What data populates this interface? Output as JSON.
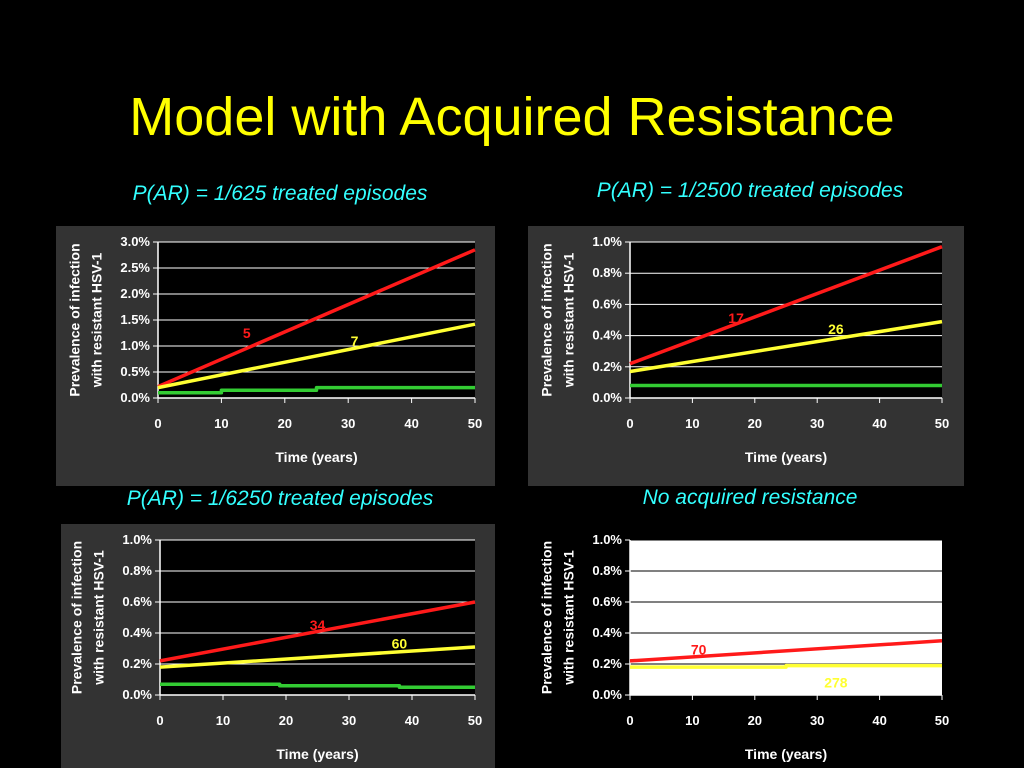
{
  "slide": {
    "title": "Model with Acquired Resistance"
  },
  "colors": {
    "background": "#000000",
    "panel": "#333333",
    "title": "#ffff00",
    "subtitle": "#33ffff",
    "red": "#ff1a1a",
    "yellow": "#ffff33",
    "green": "#33cc33"
  },
  "chart_data": [
    {
      "type": "line",
      "title": "P(AR) = 1/625 treated episodes",
      "xlabel": "Time (years)",
      "ylabel": [
        "Prevalence of infection",
        "with resistant HSV-1"
      ],
      "xlim": [
        0,
        50
      ],
      "ylim": [
        0,
        3.0
      ],
      "xticks": [
        "0",
        "10",
        "20",
        "30",
        "40",
        "50"
      ],
      "yticks": [
        "0.0%",
        "0.5%",
        "1.0%",
        "1.5%",
        "2.0%",
        "2.5%",
        "3.0%"
      ],
      "grid": true,
      "plot_bg": "#000000",
      "series": [
        {
          "color": "#ff1a1a",
          "x": [
            0,
            50
          ],
          "y": [
            0.22,
            2.85
          ],
          "label": "5",
          "label_at": [
            14,
            1.15
          ]
        },
        {
          "color": "#ffff33",
          "x": [
            0,
            50
          ],
          "y": [
            0.2,
            1.42
          ],
          "label": "7",
          "label_at": [
            31,
            1.0
          ]
        },
        {
          "color": "#33cc33",
          "x": [
            0,
            10,
            10,
            25,
            25,
            50
          ],
          "y": [
            0.1,
            0.1,
            0.15,
            0.15,
            0.2,
            0.2
          ],
          "label": "",
          "label_at": null
        }
      ]
    },
    {
      "type": "line",
      "title": "P(AR) = 1/2500 treated episodes",
      "xlabel": "Time (years)",
      "ylabel": [
        "Prevalence of infection",
        "with resistant HSV-1"
      ],
      "xlim": [
        0,
        50
      ],
      "ylim": [
        0,
        1.0
      ],
      "xticks": [
        "0",
        "10",
        "20",
        "30",
        "40",
        "50"
      ],
      "yticks": [
        "0.0%",
        "0.2%",
        "0.4%",
        "0.6%",
        "0.8%",
        "1.0%"
      ],
      "grid": true,
      "plot_bg": "#000000",
      "series": [
        {
          "color": "#ff1a1a",
          "x": [
            0,
            50
          ],
          "y": [
            0.22,
            0.97
          ],
          "label": "17",
          "label_at": [
            17,
            0.48
          ]
        },
        {
          "color": "#ffff33",
          "x": [
            0,
            50
          ],
          "y": [
            0.17,
            0.49
          ],
          "label": "26",
          "label_at": [
            33,
            0.41
          ]
        },
        {
          "color": "#33cc33",
          "x": [
            0,
            50
          ],
          "y": [
            0.08,
            0.08
          ],
          "label": "",
          "label_at": null
        }
      ]
    },
    {
      "type": "line",
      "title": "P(AR) = 1/6250 treated episodes",
      "xlabel": "Time (years)",
      "ylabel": [
        "Prevalence of infection",
        "with resistant HSV-1"
      ],
      "xlim": [
        0,
        50
      ],
      "ylim": [
        0,
        1.0
      ],
      "xticks": [
        "0",
        "10",
        "20",
        "30",
        "40",
        "50"
      ],
      "yticks": [
        "0.0%",
        "0.2%",
        "0.4%",
        "0.6%",
        "0.8%",
        "1.0%"
      ],
      "grid": true,
      "plot_bg": "#000000",
      "series": [
        {
          "color": "#ff1a1a",
          "x": [
            0,
            50
          ],
          "y": [
            0.22,
            0.6
          ],
          "label": "34",
          "label_at": [
            25,
            0.42
          ]
        },
        {
          "color": "#ffff33",
          "x": [
            0,
            50
          ],
          "y": [
            0.18,
            0.31
          ],
          "label": "60",
          "label_at": [
            38,
            0.3
          ]
        },
        {
          "color": "#33cc33",
          "x": [
            0,
            19,
            19,
            38,
            38,
            50
          ],
          "y": [
            0.07,
            0.07,
            0.06,
            0.06,
            0.05,
            0.05
          ],
          "label": "",
          "label_at": null
        }
      ]
    },
    {
      "type": "line",
      "title": "No acquired resistance",
      "xlabel": "Time (years)",
      "ylabel": [
        "Prevalence of infection",
        "with resistant HSV-1"
      ],
      "xlim": [
        0,
        50
      ],
      "ylim": [
        0,
        1.0
      ],
      "xticks": [
        "0",
        "10",
        "20",
        "30",
        "40",
        "50"
      ],
      "yticks": [
        "0.0%",
        "0.2%",
        "0.4%",
        "0.6%",
        "0.8%",
        "1.0%"
      ],
      "grid": true,
      "plot_bg": "#ffffff",
      "series": [
        {
          "color": "#ff1a1a",
          "x": [
            0,
            50
          ],
          "y": [
            0.22,
            0.35
          ],
          "label": "70",
          "label_at": [
            11,
            0.26
          ]
        },
        {
          "color": "#ffff33",
          "x": [
            0,
            25,
            25,
            50
          ],
          "y": [
            0.18,
            0.18,
            0.19,
            0.19
          ],
          "label": "278",
          "label_at": [
            33,
            0.05
          ]
        }
      ]
    }
  ]
}
